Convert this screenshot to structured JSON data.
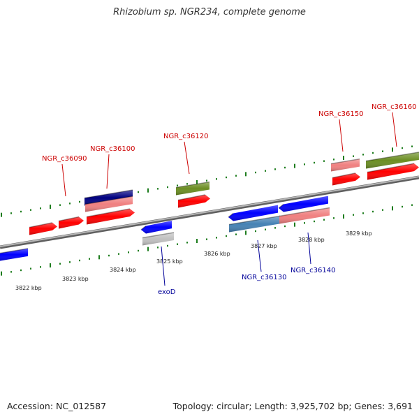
{
  "header": {
    "title": "Rhizobium sp. NGR234, complete genome"
  },
  "footer": {
    "accession": "Accession: NC_012587",
    "stats": "Topology: circular; Length: 3,925,702 bp; Genes: 3,691"
  },
  "colors": {
    "backbone": "#8a8a8a",
    "tick": "#1e7d1e",
    "forward_label": "#cc0000",
    "reverse_label": "#000099",
    "red": "#ff0000",
    "salmon": "#f08080",
    "olive": "#6b8e23",
    "navy": "#000080",
    "blue": "#0000ff",
    "steelblue": "#4682b4",
    "silver": "#c0c0c0"
  },
  "scale": {
    "labels": [
      "3822 kbp",
      "3823 kbp",
      "3824 kbp",
      "3825 kbp",
      "3826 kbp",
      "3827 kbp",
      "3828 kbp",
      "3829 kbp"
    ]
  },
  "gene_labels": [
    {
      "text": "NGR_c36090",
      "strand": "forward"
    },
    {
      "text": "NGR_c36100",
      "strand": "forward"
    },
    {
      "text": "NGR_c36120",
      "strand": "forward"
    },
    {
      "text": "NGR_c36150",
      "strand": "forward"
    },
    {
      "text": "NGR_c36160",
      "strand": "forward"
    },
    {
      "text": "exoD",
      "strand": "reverse"
    },
    {
      "text": "NGR_c36130",
      "strand": "reverse"
    },
    {
      "text": "NGR_c36140",
      "strand": "reverse"
    }
  ]
}
